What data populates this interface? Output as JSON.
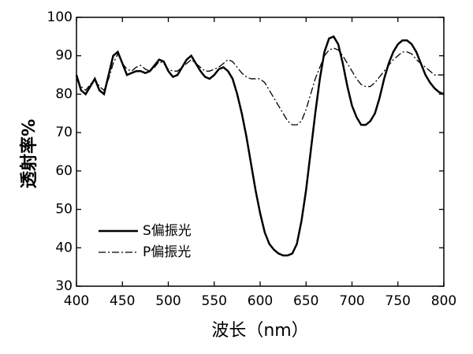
{
  "chart_data": {
    "type": "line",
    "xlabel": "波长（nm）",
    "ylabel": "透射率%",
    "x": [
      400,
      405,
      410,
      415,
      420,
      425,
      430,
      435,
      440,
      445,
      450,
      455,
      460,
      465,
      470,
      475,
      480,
      485,
      490,
      495,
      500,
      505,
      510,
      515,
      520,
      525,
      530,
      535,
      540,
      545,
      550,
      555,
      560,
      565,
      570,
      575,
      580,
      585,
      590,
      595,
      600,
      605,
      610,
      615,
      620,
      625,
      630,
      635,
      640,
      645,
      650,
      655,
      660,
      665,
      670,
      675,
      680,
      685,
      690,
      695,
      700,
      705,
      710,
      715,
      720,
      725,
      730,
      735,
      740,
      745,
      750,
      755,
      760,
      765,
      770,
      775,
      780,
      785,
      790,
      795,
      800
    ],
    "series": [
      {
        "name": "S偏振光",
        "color": "#000000",
        "style": "solid",
        "values": [
          85,
          81,
          80,
          82,
          84,
          81,
          80,
          85,
          90,
          91,
          88,
          85,
          85.5,
          86,
          86,
          85.5,
          86,
          87.5,
          89,
          88.5,
          86,
          84.5,
          85,
          87,
          89,
          90,
          88,
          86,
          84.5,
          84,
          85,
          86.5,
          87,
          86,
          84,
          80,
          75,
          69,
          62,
          55,
          49,
          44,
          41,
          39.5,
          38.5,
          38,
          38,
          38.5,
          41,
          47,
          55,
          65,
          75,
          84,
          91,
          94.5,
          95,
          93,
          88,
          82,
          77,
          74,
          72,
          72,
          73,
          75,
          79,
          84,
          88,
          91,
          93,
          94,
          94,
          93,
          91,
          88,
          85,
          83,
          81.5,
          80.5,
          80
        ]
      },
      {
        "name": "P偏振光",
        "color": "#000000",
        "style": "dashdot",
        "values": [
          84,
          82,
          81,
          82.5,
          84,
          82,
          81,
          84,
          88,
          90.5,
          88,
          86.5,
          86,
          87,
          87.5,
          86.5,
          86,
          87,
          88.5,
          88,
          86.5,
          86,
          86,
          87,
          88,
          89,
          88,
          87,
          86,
          86,
          86.5,
          87,
          88,
          89,
          88.5,
          87,
          85.5,
          84.5,
          84,
          84,
          84,
          83,
          81,
          79,
          77,
          75,
          73,
          72,
          72,
          73,
          76,
          80,
          84,
          87,
          90,
          91.5,
          92,
          91.5,
          90,
          88,
          86,
          84,
          82.5,
          82,
          82,
          83,
          84.5,
          86,
          87.5,
          89,
          90,
          91,
          91,
          90.5,
          89,
          88,
          87,
          86,
          85,
          85,
          85
        ]
      }
    ],
    "xlim": [
      400,
      800
    ],
    "xticks": [
      400,
      450,
      500,
      550,
      600,
      650,
      700,
      750,
      800
    ],
    "ylim": [
      30,
      100
    ],
    "yticks": [
      30,
      40,
      50,
      60,
      70,
      80,
      90,
      100
    ],
    "grid": false,
    "legend": "lower left"
  }
}
